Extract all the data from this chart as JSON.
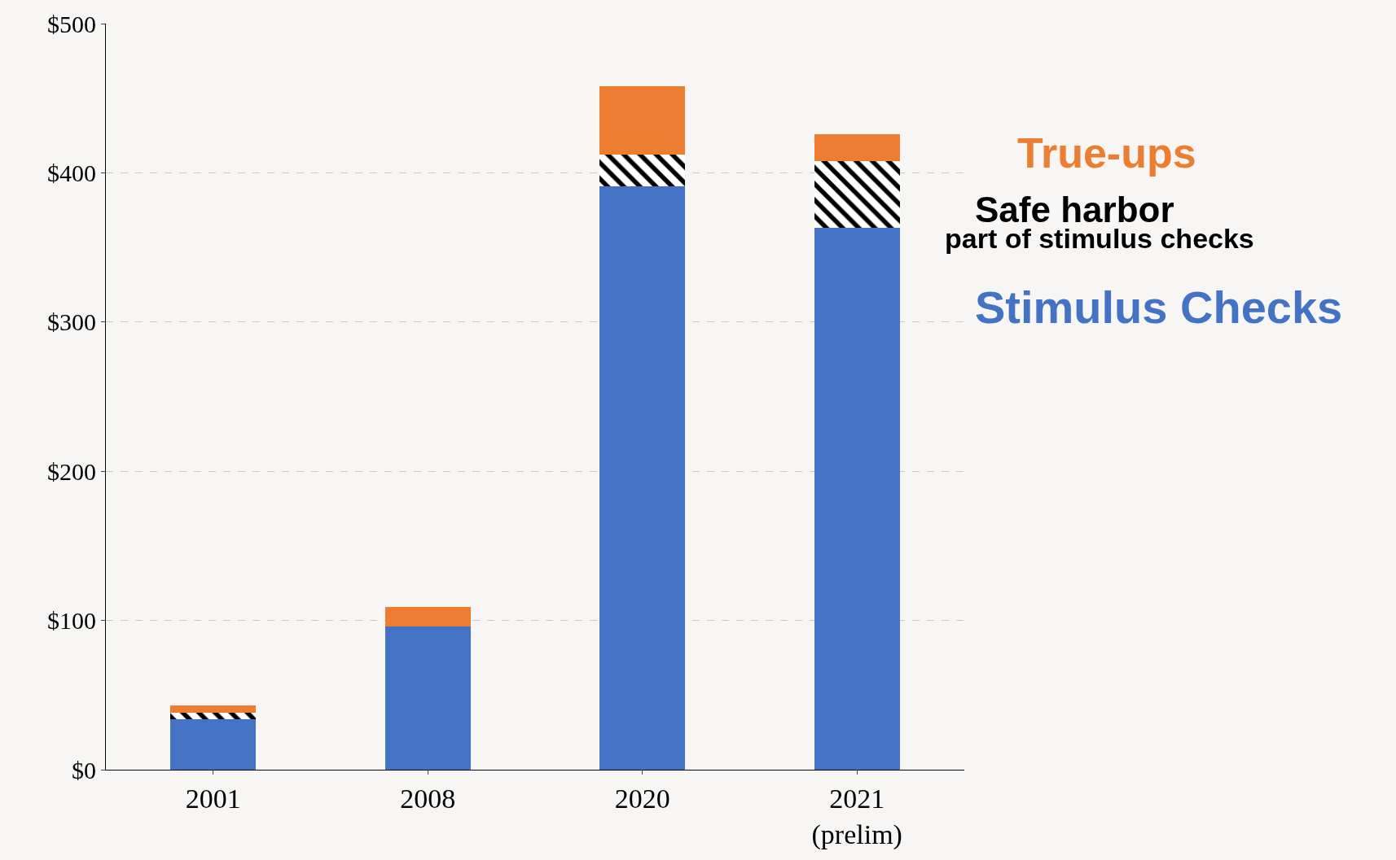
{
  "chart_data": {
    "type": "bar",
    "stacked": true,
    "categories": [
      "2001",
      "2008",
      "2020",
      "2021\n(prelim)"
    ],
    "series": [
      {
        "name": "Stimulus Checks",
        "color": "#4472c4",
        "values": [
          34,
          96,
          391,
          363
        ]
      },
      {
        "name": "Safe harbor",
        "color": "#000000",
        "values": [
          4,
          null,
          21,
          45
        ]
      },
      {
        "name": "True-ups",
        "color": "#ed7d31",
        "values": [
          5,
          13,
          46,
          18
        ]
      }
    ],
    "annotations": [
      "part of stimulus checks"
    ],
    "ylim": [
      0,
      500
    ],
    "yticks": [
      {
        "value": 0,
        "label": "$0"
      },
      {
        "value": 100,
        "label": "$100"
      },
      {
        "value": 200,
        "label": "$200"
      },
      {
        "value": 300,
        "label": "$300"
      },
      {
        "value": 400,
        "label": "$400"
      },
      {
        "value": 500,
        "label": "$500"
      }
    ],
    "grid": "y",
    "legend": false
  }
}
